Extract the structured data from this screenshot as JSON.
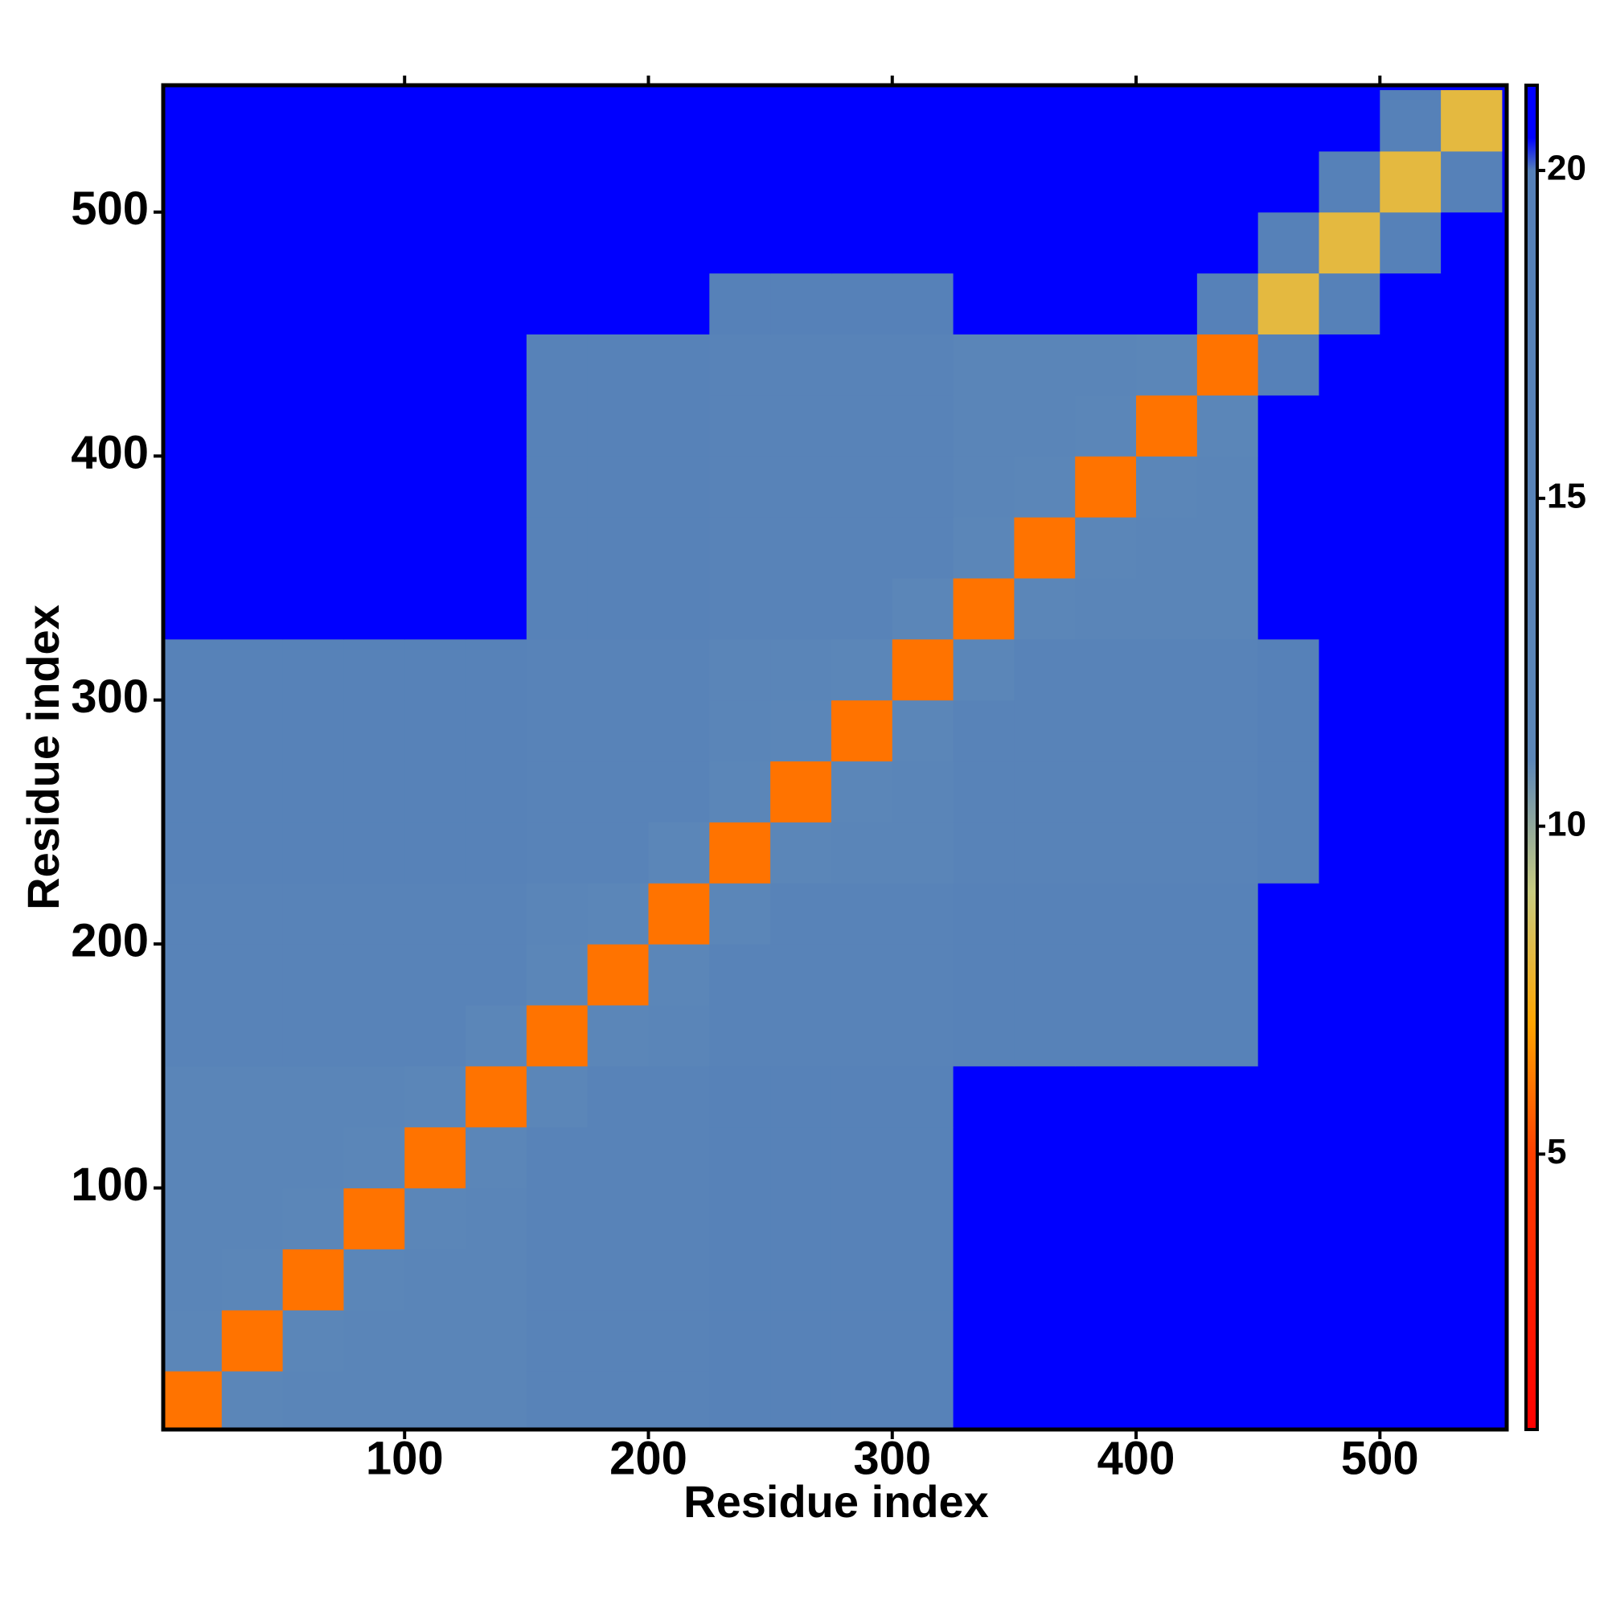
{
  "chart_data": {
    "type": "heatmap",
    "xlabel": "Residue index",
    "ylabel": "Residue index",
    "xlim": [
      1,
      552
    ],
    "ylim": [
      1,
      552
    ],
    "xticks": [
      100,
      200,
      300,
      400,
      500
    ],
    "yticks": [
      100,
      200,
      300,
      400,
      500
    ],
    "bins": [
      0,
      25,
      50,
      75,
      100,
      125,
      150,
      175,
      200,
      225,
      250,
      275,
      300,
      325,
      350,
      375,
      400,
      425,
      450,
      475,
      500,
      525,
      550
    ],
    "values": [
      [
        6,
        11,
        13,
        13,
        13,
        13,
        16,
        16,
        16,
        17,
        17,
        17,
        17,
        21,
        21,
        21,
        21,
        21,
        21,
        21,
        21,
        21
      ],
      [
        11,
        6,
        11,
        13,
        13,
        13,
        16,
        16,
        16,
        17,
        17,
        17,
        17,
        21,
        21,
        21,
        21,
        21,
        21,
        21,
        21,
        21
      ],
      [
        13,
        11,
        6,
        11,
        13,
        13,
        16,
        16,
        16,
        17,
        17,
        17,
        17,
        21,
        21,
        21,
        21,
        21,
        21,
        21,
        21,
        21
      ],
      [
        13,
        13,
        11,
        6,
        11,
        13,
        16,
        16,
        16,
        17,
        17,
        17,
        17,
        21,
        21,
        21,
        21,
        21,
        21,
        21,
        21,
        21
      ],
      [
        13,
        13,
        13,
        11,
        6,
        11,
        16,
        16,
        16,
        17,
        17,
        17,
        17,
        21,
        21,
        21,
        21,
        21,
        21,
        21,
        21,
        21
      ],
      [
        13,
        13,
        13,
        13,
        11,
        6,
        11,
        16,
        16,
        17,
        17,
        17,
        17,
        21,
        21,
        21,
        21,
        21,
        21,
        21,
        21,
        21
      ],
      [
        16,
        16,
        16,
        16,
        16,
        11,
        6,
        11,
        13,
        15,
        15,
        15,
        15,
        17,
        17,
        17,
        17,
        17,
        21,
        21,
        21,
        21
      ],
      [
        16,
        16,
        16,
        16,
        16,
        16,
        11,
        6,
        11,
        15,
        15,
        15,
        15,
        17,
        17,
        17,
        17,
        17,
        21,
        21,
        21,
        21
      ],
      [
        16,
        16,
        16,
        16,
        16,
        16,
        13,
        11,
        6,
        11,
        15,
        15,
        15,
        17,
        17,
        17,
        17,
        17,
        21,
        21,
        21,
        21
      ],
      [
        17,
        17,
        17,
        17,
        17,
        17,
        15,
        15,
        11,
        6,
        11,
        13,
        13,
        16,
        16,
        16,
        16,
        16,
        19,
        21,
        21,
        21
      ],
      [
        17,
        17,
        17,
        17,
        17,
        17,
        15,
        15,
        15,
        11,
        6,
        11,
        13,
        16,
        16,
        16,
        16,
        16,
        19,
        21,
        21,
        21
      ],
      [
        17,
        17,
        17,
        17,
        17,
        17,
        15,
        15,
        15,
        13,
        11,
        6,
        11,
        16,
        16,
        16,
        16,
        16,
        19,
        21,
        21,
        21
      ],
      [
        17,
        17,
        17,
        17,
        17,
        17,
        15,
        15,
        15,
        13,
        13,
        11,
        6,
        11,
        16,
        16,
        16,
        16,
        19,
        21,
        21,
        21
      ],
      [
        21,
        21,
        21,
        21,
        21,
        21,
        17,
        17,
        17,
        16,
        16,
        16,
        11,
        6,
        11,
        13,
        13,
        13,
        21,
        21,
        21,
        21
      ],
      [
        21,
        21,
        21,
        21,
        21,
        21,
        17,
        17,
        17,
        16,
        16,
        16,
        16,
        11,
        6,
        11,
        13,
        13,
        21,
        21,
        21,
        21
      ],
      [
        21,
        21,
        21,
        21,
        21,
        21,
        17,
        17,
        17,
        16,
        16,
        16,
        16,
        13,
        11,
        6,
        11,
        13,
        21,
        21,
        21,
        21
      ],
      [
        21,
        21,
        21,
        21,
        21,
        21,
        17,
        17,
        17,
        16,
        16,
        16,
        16,
        13,
        13,
        11,
        6,
        11,
        21,
        21,
        21,
        21
      ],
      [
        21,
        21,
        21,
        21,
        21,
        21,
        17,
        17,
        17,
        16,
        16,
        16,
        16,
        13,
        13,
        13,
        11,
        6,
        19,
        21,
        21,
        21
      ],
      [
        21,
        21,
        21,
        21,
        21,
        21,
        21,
        21,
        21,
        19,
        19,
        19,
        19,
        21,
        21,
        21,
        21,
        19,
        8,
        19,
        21,
        21
      ],
      [
        21,
        21,
        21,
        21,
        21,
        21,
        21,
        21,
        21,
        21,
        21,
        21,
        21,
        21,
        21,
        21,
        21,
        21,
        19,
        8,
        19,
        21
      ],
      [
        21,
        21,
        21,
        21,
        21,
        21,
        21,
        21,
        21,
        21,
        21,
        21,
        21,
        21,
        21,
        21,
        21,
        21,
        21,
        19,
        8,
        19
      ],
      [
        21,
        21,
        21,
        21,
        21,
        21,
        21,
        21,
        21,
        21,
        21,
        21,
        21,
        21,
        21,
        21,
        21,
        21,
        21,
        21,
        19,
        8
      ]
    ],
    "zlim": [
      0.8,
      21.3
    ],
    "zticks": [
      5,
      10,
      15,
      20
    ],
    "colorscale": [
      [
        0.8,
        "#ff0000"
      ],
      [
        5,
        "#ff4000"
      ],
      [
        7,
        "#ffa500"
      ],
      [
        9,
        "#c8cc80"
      ],
      [
        11,
        "#5b86b8"
      ],
      [
        20,
        "#5580b8"
      ],
      [
        20.5,
        "#0000ff"
      ],
      [
        21.3,
        "#0000ff"
      ]
    ]
  }
}
